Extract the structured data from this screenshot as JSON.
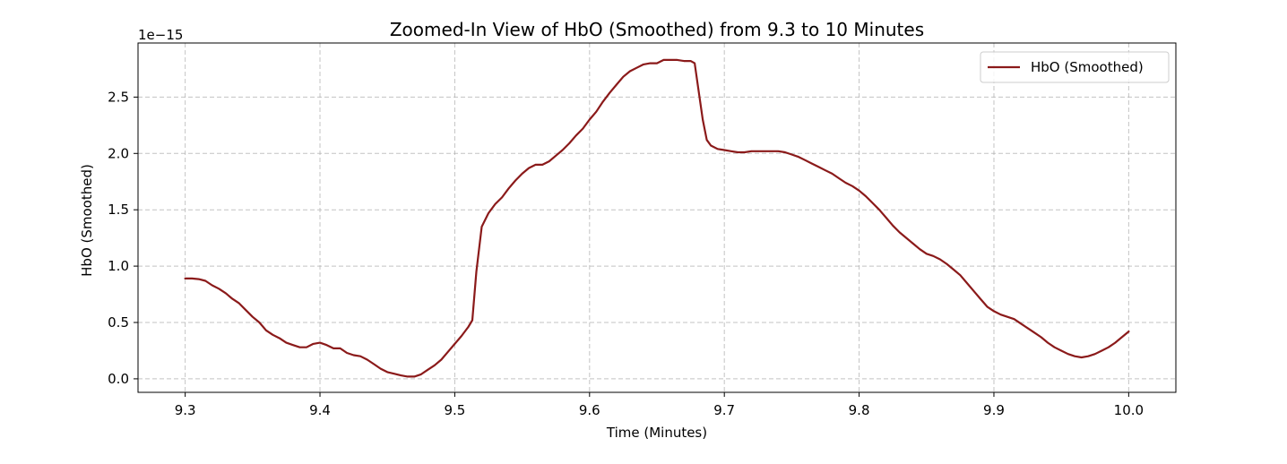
{
  "chart_data": {
    "type": "line",
    "title": "Zoomed-In View of HbO (Smoothed) from 9.3 to 10 Minutes",
    "xlabel": "Time (Minutes)",
    "ylabel": "HbO (Smoothed)",
    "y_offset_text": "1e−15",
    "xlim": [
      9.265,
      10.035
    ],
    "ylim": [
      -0.12,
      2.98
    ],
    "x_ticks": [
      9.3,
      9.4,
      9.5,
      9.6,
      9.7,
      9.8,
      9.9,
      10.0
    ],
    "x_tick_labels": [
      "9.3",
      "9.4",
      "9.5",
      "9.6",
      "9.7",
      "9.8",
      "9.9",
      "10.0"
    ],
    "y_ticks": [
      0.0,
      0.5,
      1.0,
      1.5,
      2.0,
      2.5
    ],
    "y_tick_labels": [
      "0.0",
      "0.5",
      "1.0",
      "1.5",
      "2.0",
      "2.5"
    ],
    "grid": true,
    "legend_position": "top-right",
    "series": [
      {
        "name": "HbO (Smoothed)",
        "color": "#8b1a1a",
        "x": [
          9.3,
          9.305,
          9.31,
          9.315,
          9.32,
          9.325,
          9.33,
          9.335,
          9.34,
          9.345,
          9.35,
          9.355,
          9.36,
          9.365,
          9.37,
          9.375,
          9.38,
          9.385,
          9.39,
          9.395,
          9.4,
          9.405,
          9.41,
          9.415,
          9.42,
          9.425,
          9.43,
          9.435,
          9.44,
          9.445,
          9.45,
          9.455,
          9.46,
          9.465,
          9.47,
          9.475,
          9.48,
          9.485,
          9.49,
          9.495,
          9.5,
          9.505,
          9.51,
          9.513,
          9.516,
          9.52,
          9.525,
          9.53,
          9.535,
          9.54,
          9.545,
          9.55,
          9.555,
          9.56,
          9.565,
          9.57,
          9.575,
          9.58,
          9.585,
          9.59,
          9.595,
          9.6,
          9.605,
          9.61,
          9.615,
          9.62,
          9.625,
          9.63,
          9.635,
          9.64,
          9.645,
          9.65,
          9.655,
          9.66,
          9.665,
          9.67,
          9.675,
          9.678,
          9.681,
          9.684,
          9.687,
          9.69,
          9.695,
          9.7,
          9.705,
          9.71,
          9.715,
          9.72,
          9.725,
          9.73,
          9.735,
          9.74,
          9.745,
          9.75,
          9.755,
          9.76,
          9.765,
          9.77,
          9.775,
          9.78,
          9.785,
          9.79,
          9.795,
          9.8,
          9.805,
          9.81,
          9.815,
          9.82,
          9.825,
          9.83,
          9.835,
          9.84,
          9.845,
          9.85,
          9.855,
          9.86,
          9.865,
          9.87,
          9.875,
          9.88,
          9.885,
          9.89,
          9.895,
          9.9,
          9.905,
          9.91,
          9.915,
          9.92,
          9.925,
          9.93,
          9.935,
          9.94,
          9.945,
          9.95,
          9.955,
          9.96,
          9.965,
          9.97,
          9.975,
          9.98,
          9.985,
          9.99,
          9.995,
          10.0
        ],
        "values": [
          0.89,
          0.89,
          0.885,
          0.87,
          0.83,
          0.8,
          0.76,
          0.71,
          0.67,
          0.61,
          0.55,
          0.5,
          0.43,
          0.39,
          0.36,
          0.32,
          0.3,
          0.28,
          0.28,
          0.31,
          0.32,
          0.3,
          0.27,
          0.27,
          0.23,
          0.21,
          0.2,
          0.17,
          0.13,
          0.09,
          0.06,
          0.045,
          0.03,
          0.02,
          0.02,
          0.04,
          0.08,
          0.12,
          0.17,
          0.24,
          0.31,
          0.38,
          0.46,
          0.52,
          0.95,
          1.35,
          1.47,
          1.55,
          1.61,
          1.69,
          1.76,
          1.82,
          1.87,
          1.9,
          1.9,
          1.93,
          1.98,
          2.03,
          2.09,
          2.16,
          2.22,
          2.3,
          2.37,
          2.46,
          2.54,
          2.61,
          2.68,
          2.73,
          2.76,
          2.79,
          2.8,
          2.8,
          2.83,
          2.83,
          2.83,
          2.82,
          2.82,
          2.8,
          2.55,
          2.3,
          2.12,
          2.07,
          2.04,
          2.03,
          2.02,
          2.01,
          2.01,
          2.02,
          2.02,
          2.02,
          2.02,
          2.02,
          2.01,
          1.99,
          1.97,
          1.94,
          1.91,
          1.88,
          1.85,
          1.82,
          1.78,
          1.74,
          1.71,
          1.67,
          1.62,
          1.56,
          1.5,
          1.43,
          1.36,
          1.3,
          1.25,
          1.2,
          1.15,
          1.11,
          1.09,
          1.06,
          1.02,
          0.97,
          0.92,
          0.85,
          0.78,
          0.71,
          0.64,
          0.6,
          0.57,
          0.55,
          0.53,
          0.49,
          0.45,
          0.41,
          0.37,
          0.32,
          0.28,
          0.25,
          0.22,
          0.2,
          0.19,
          0.2,
          0.22,
          0.25,
          0.28,
          0.32,
          0.37,
          0.42
        ]
      }
    ]
  }
}
